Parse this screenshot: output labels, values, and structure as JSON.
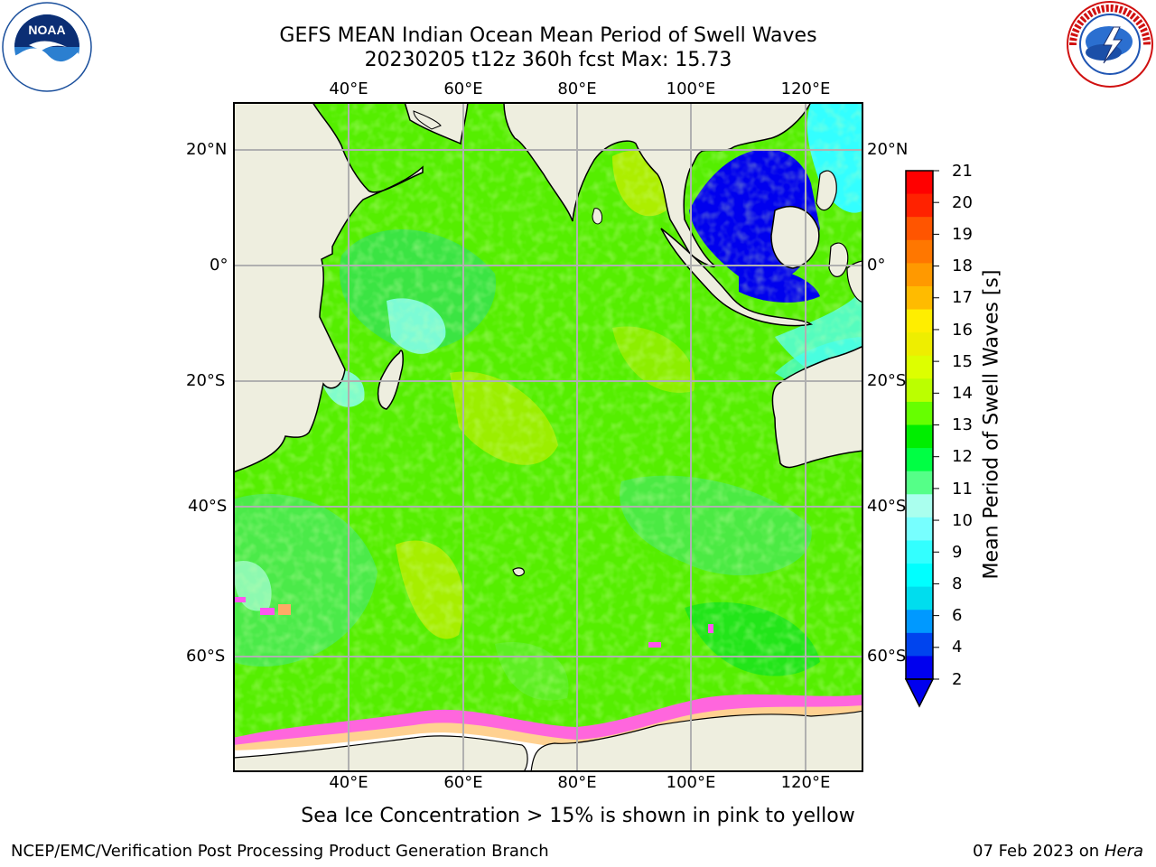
{
  "header": {
    "title_line1": "GEFS MEAN Indian Ocean Mean Period of Swell Waves",
    "title_line2": "20230205 t12z 360h fcst   Max: 15.73"
  },
  "logos": {
    "left": "NOAA",
    "right": "NATIONAL WEATHER SERVICE"
  },
  "map": {
    "lon_labels": [
      "40°E",
      "60°E",
      "80°E",
      "100°E",
      "120°E"
    ],
    "lat_labels_left": [
      "20°N",
      "0°",
      "20°S",
      "40°S",
      "60°S"
    ],
    "lat_labels_right": [
      "20°N",
      "0°",
      "20°S",
      "40°S",
      "60°S"
    ],
    "colors": {
      "land": "#eeeedf",
      "ocean_main": "#55ee00",
      "ice": "#ff55ee",
      "grid": "#b0b0b0",
      "deep_blue": "#0000ee",
      "cyan": "#44ffff"
    }
  },
  "colorbar": {
    "label": "Mean Period of Swell Waves [s]",
    "ticks": [
      "21",
      "20",
      "19",
      "18",
      "17",
      "16",
      "15",
      "14",
      "13",
      "12",
      "11",
      "10",
      "9",
      "8",
      "6",
      "4",
      "2"
    ],
    "colors": [
      "#ff0000",
      "#ff2200",
      "#ff5500",
      "#ff7700",
      "#ff9900",
      "#ffbb00",
      "#ffee00",
      "#eeee00",
      "#ddff00",
      "#bbff00",
      "#66ff00",
      "#00ee00",
      "#00ff44",
      "#55ff88",
      "#aaffee",
      "#77ffff",
      "#33ffff",
      "#00ffff",
      "#00ddee",
      "#0099ff",
      "#0044ee",
      "#0000ee"
    ]
  },
  "footer": {
    "note": "Sea Ice Concentration > 15% is shown in pink to yellow",
    "left": "NCEP/EMC/Verification Post Processing Product Generation Branch",
    "right_date": "07 Feb 2023 on",
    "right_machine": "Hera"
  }
}
